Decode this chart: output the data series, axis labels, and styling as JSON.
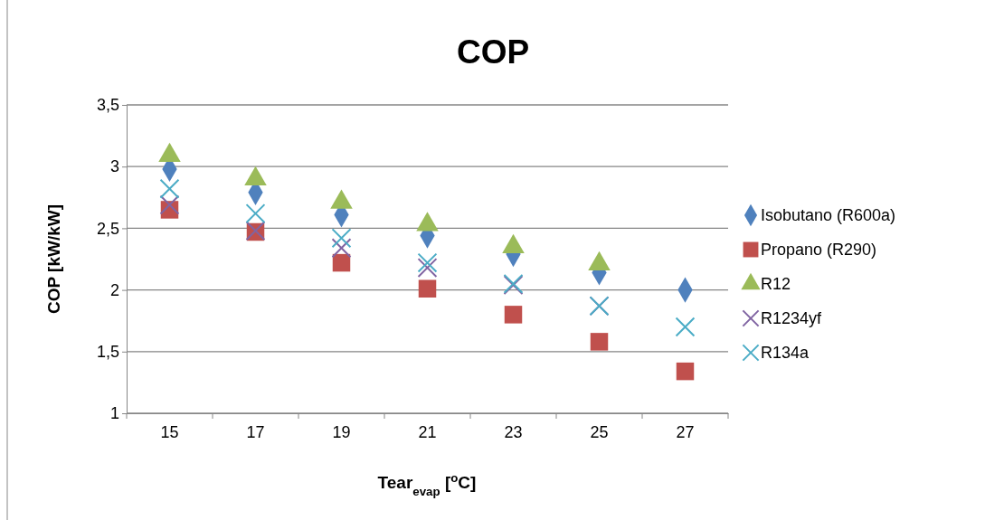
{
  "chart_data": {
    "type": "scatter",
    "title": "COP",
    "xlabel": "Tear$_{evap}$ [$^{o}$C]",
    "ylabel": "COP [kW/kW]",
    "categories": [
      "15",
      "17",
      "19",
      "21",
      "23",
      "25",
      "27"
    ],
    "ylim": [
      1,
      3.5
    ],
    "yticks": [
      1,
      {
        "value": 1.5,
        "label": "1,5"
      },
      2,
      {
        "value": 2.5,
        "label": "2,5"
      },
      3,
      {
        "value": 3.5,
        "label": "3,5"
      }
    ],
    "grid": "y",
    "legend": "right",
    "series": [
      {
        "name": "Isobutano (R600a)",
        "color": "#4f81bd",
        "marker": "diamond",
        "values": [
          2.98,
          2.79,
          2.61,
          2.44,
          2.29,
          2.14,
          2.0
        ]
      },
      {
        "name": "Propano (R290)",
        "color": "#c0504d",
        "marker": "square",
        "values": [
          2.65,
          2.47,
          2.22,
          2.01,
          1.8,
          1.58,
          1.34
        ]
      },
      {
        "name": "R12",
        "color": "#9bbb59",
        "marker": "triangle",
        "values": [
          3.09,
          2.9,
          2.71,
          2.53,
          2.35,
          2.21,
          null
        ]
      },
      {
        "name": "R1234yf",
        "color": "#8064a2",
        "marker": "cross",
        "values": [
          2.69,
          2.48,
          2.34,
          2.18,
          2.04,
          1.87,
          null
        ]
      },
      {
        "name": "R134a",
        "color": "#4bacc6",
        "marker": "cross",
        "values": [
          2.82,
          2.62,
          2.42,
          2.22,
          2.05,
          1.87,
          1.7
        ]
      }
    ]
  }
}
